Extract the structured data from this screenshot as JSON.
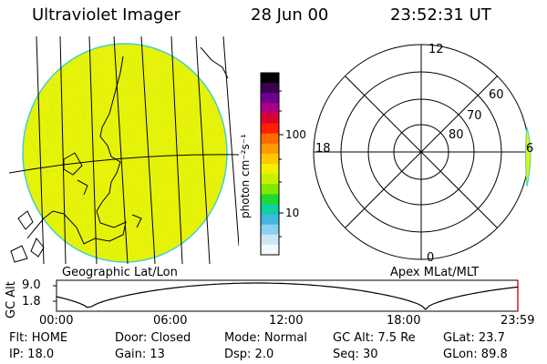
{
  "header": {
    "instrument": "Ultraviolet Imager",
    "date": "28 Jun 00",
    "time": "23:52:31 UT"
  },
  "left_panel": {
    "caption": "Geographic Lat/Lon",
    "fill_color": "#e6f20a"
  },
  "colorbar": {
    "unit_label": "photon cm⁻²s⁻¹",
    "ticks": [
      "100",
      "10"
    ],
    "colors": [
      "#000000",
      "#3a0050",
      "#6e0090",
      "#b00080",
      "#e00030",
      "#ff2000",
      "#ff6a00",
      "#ff9a00",
      "#ffc800",
      "#f0f000",
      "#c8f000",
      "#80e800",
      "#20d830",
      "#10d0a0",
      "#40b8e0",
      "#8ad0f0",
      "#cce6f4",
      "#f4f8fc"
    ]
  },
  "polar_panel": {
    "caption": "Apex MLat/MLT",
    "mlt_labels": {
      "top": "12",
      "left": "18",
      "bottom": "0",
      "right": "6"
    },
    "lat_labels": [
      "60",
      "70",
      "80"
    ]
  },
  "orbit_plot": {
    "axis_title": "GC Alt",
    "y_ticks": [
      "9.0",
      "1.8"
    ],
    "x_ticks": [
      "00:00",
      "06:00",
      "12:00",
      "18:00",
      "23:59"
    ]
  },
  "status": {
    "flt": "Flt: HOME",
    "ip": "IP: 18.0",
    "door": "Door: Closed",
    "gain": "Gain: 13",
    "mode": "Mode: Normal",
    "dsp": "Dsp:     2.0",
    "gc_alt": "GC Alt: 7.5 Re",
    "seq": "Seq: 30",
    "glat": "GLat:  23.7",
    "glon": "GLon:  89.8"
  }
}
